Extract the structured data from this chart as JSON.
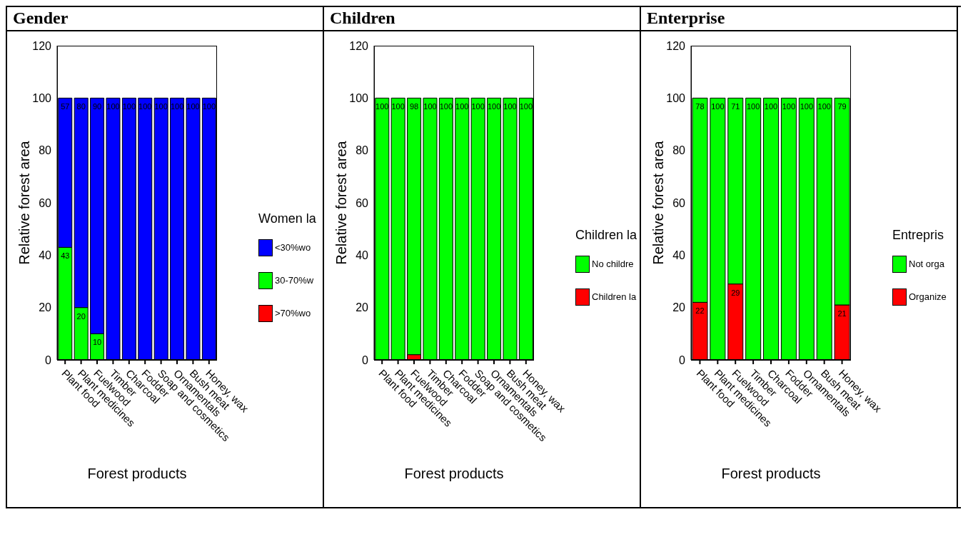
{
  "chart_data": [
    {
      "type": "bar",
      "title": "Gender",
      "xlabel": "Forest products",
      "ylabel": "Relative forest area",
      "legend_title": "Women la",
      "stacked": true,
      "legend": "right",
      "grid": false,
      "ylim": [
        0,
        120
      ],
      "yticks": [
        0,
        20,
        40,
        60,
        80,
        100,
        120
      ],
      "categories": [
        "Plant food",
        "Plant medicines",
        "Fuelwood",
        "Timber",
        "Charcoal",
        "Fodder",
        "Soap and cosmetics",
        "Ornamentals",
        "Bush meat",
        "Honey, wax"
      ],
      "series": [
        {
          "name": ">70%wo",
          "color": "#ff0000",
          "values": [
            0,
            0,
            0,
            0,
            0,
            0,
            0,
            0,
            0,
            0
          ],
          "value_labels": [
            null,
            null,
            null,
            null,
            null,
            null,
            null,
            null,
            null,
            null
          ]
        },
        {
          "name": "30-70%w",
          "color": "#00ff00",
          "values": [
            43,
            20,
            10,
            0,
            0,
            0,
            0,
            0,
            0,
            0
          ],
          "value_labels": [
            "43",
            "20",
            "10",
            null,
            null,
            null,
            null,
            null,
            null,
            null
          ]
        },
        {
          "name": "<30%wo",
          "color": "#0000ff",
          "values": [
            57,
            80,
            90,
            100,
            100,
            100,
            100,
            100,
            100,
            100
          ],
          "value_labels": [
            "57",
            "80",
            "90",
            "100",
            "100",
            "100",
            "100",
            "100",
            "100",
            "100"
          ]
        }
      ]
    },
    {
      "type": "bar",
      "title": "Children",
      "xlabel": "Forest products",
      "ylabel": "Relative forest area",
      "legend_title": "Children la",
      "stacked": true,
      "legend": "right",
      "grid": false,
      "ylim": [
        0,
        120
      ],
      "yticks": [
        0,
        20,
        40,
        60,
        80,
        100,
        120
      ],
      "categories": [
        "Plant food",
        "Plant medicines",
        "Fuelwood",
        "Timber",
        "Charcoal",
        "Fodder",
        "Soap and cosmetics",
        "Ornamentals",
        "Bush meat",
        "Honey, wax"
      ],
      "series": [
        {
          "name": "Children la",
          "color": "#ff0000",
          "values": [
            0,
            0,
            2,
            0,
            0,
            0,
            0,
            0,
            0,
            0
          ],
          "value_labels": [
            null,
            null,
            null,
            null,
            null,
            null,
            null,
            null,
            null,
            null
          ]
        },
        {
          "name": "No childre",
          "color": "#00ff00",
          "values": [
            100,
            100,
            98,
            100,
            100,
            100,
            100,
            100,
            100,
            100
          ],
          "value_labels": [
            "100",
            "100",
            "98",
            "100",
            "100",
            "100",
            "100",
            "100",
            "100",
            "100"
          ]
        }
      ]
    },
    {
      "type": "bar",
      "title": "Enterprise",
      "xlabel": "Forest products",
      "ylabel": "Relative forest area",
      "legend_title": "Entrepris",
      "stacked": true,
      "legend": "right",
      "grid": false,
      "ylim": [
        0,
        120
      ],
      "yticks": [
        0,
        20,
        40,
        60,
        80,
        100,
        120
      ],
      "categories": [
        "Plant food",
        "Plant medicines",
        "Fuelwood",
        "Timber",
        "Charcoal",
        "Fodder",
        "Ornamentals",
        "Bush meat",
        "Honey, wax"
      ],
      "series": [
        {
          "name": "Organize",
          "color": "#ff0000",
          "values": [
            22,
            0,
            29,
            0,
            0,
            0,
            0,
            0,
            21
          ],
          "value_labels": [
            "22",
            null,
            "29",
            null,
            null,
            null,
            null,
            null,
            "21"
          ]
        },
        {
          "name": "Not orga",
          "color": "#00ff00",
          "values": [
            78,
            100,
            71,
            100,
            100,
            100,
            100,
            100,
            79
          ],
          "value_labels": [
            "78",
            "100",
            "71",
            "100",
            "100",
            "100",
            "100",
            "100",
            "79"
          ]
        }
      ]
    }
  ]
}
